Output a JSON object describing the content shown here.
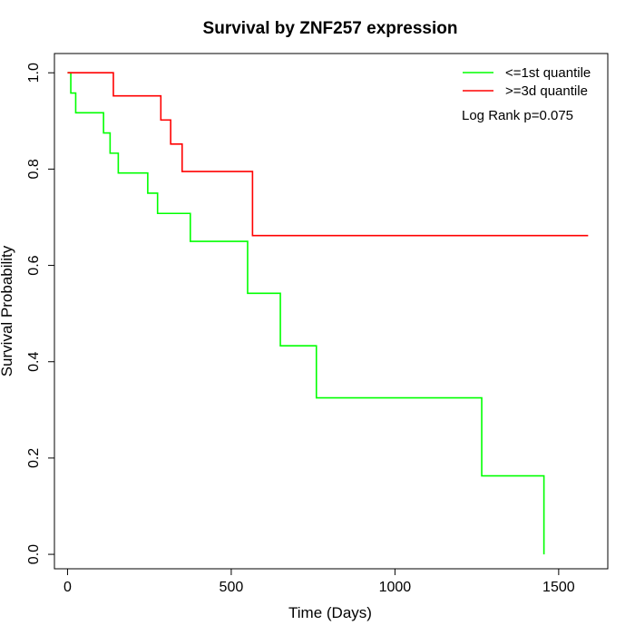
{
  "chart_data": {
    "type": "line",
    "step": true,
    "title": "Survival by ZNF257 expression",
    "xlabel": "Time (Days)",
    "ylabel": "Survival Probability",
    "xlim": [
      -40,
      1650
    ],
    "ylim": [
      -0.03,
      1.04
    ],
    "xticks": [
      0,
      500,
      1000,
      1500
    ],
    "yticks": [
      0.0,
      0.2,
      0.4,
      0.6,
      0.8,
      1.0
    ],
    "xtick_labels": [
      "0",
      "500",
      "1000",
      "1500"
    ],
    "ytick_labels": [
      "0.0",
      "0.2",
      "0.4",
      "0.6",
      "0.8",
      "1.0"
    ],
    "legend_position": "top-right",
    "annotation": "Log Rank p=0.075",
    "series": [
      {
        "name": "<=1st quantile",
        "color": "#00ff00",
        "points": [
          [
            0,
            1.0
          ],
          [
            10,
            0.958
          ],
          [
            25,
            0.917
          ],
          [
            110,
            0.875
          ],
          [
            130,
            0.833
          ],
          [
            155,
            0.792
          ],
          [
            245,
            0.75
          ],
          [
            275,
            0.708
          ],
          [
            375,
            0.65
          ],
          [
            550,
            0.542
          ],
          [
            650,
            0.433
          ],
          [
            760,
            0.325
          ],
          [
            1265,
            0.163
          ],
          [
            1455,
            0.0
          ]
        ]
      },
      {
        "name": ">=3d quantile",
        "color": "#ff0000",
        "points": [
          [
            0,
            1.0
          ],
          [
            140,
            0.952
          ],
          [
            285,
            0.902
          ],
          [
            315,
            0.852
          ],
          [
            350,
            0.795
          ],
          [
            565,
            0.662
          ],
          [
            1590,
            0.662
          ]
        ]
      }
    ]
  }
}
